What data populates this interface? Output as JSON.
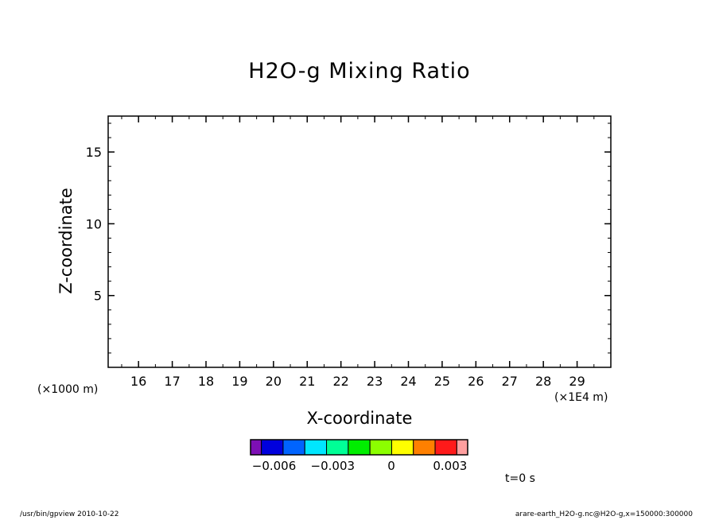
{
  "chart_data": {
    "type": "heatmap",
    "title": "H2O-g Mixing Ratio",
    "xlabel": "X-coordinate",
    "ylabel": "Z-coordinate",
    "x_unit_note": "(×1E4 m)",
    "y_unit_note": "(×1000 m)",
    "xlim": [
      15.1,
      30.0
    ],
    "ylim": [
      0,
      17.5
    ],
    "x_ticks": [
      16,
      17,
      18,
      19,
      20,
      21,
      22,
      23,
      24,
      25,
      26,
      27,
      28,
      29
    ],
    "y_ticks": [
      5,
      10,
      15
    ],
    "values": [],
    "colorbar": {
      "ticks": [
        "−0.006",
        "−0.003",
        "0",
        "0.003"
      ],
      "tick_values": [
        -0.006,
        -0.003,
        0,
        0.003
      ],
      "range": [
        -0.0072,
        0.0039
      ],
      "colors": [
        "#7d0fb5",
        "#0000dd",
        "#0064ff",
        "#00e6ff",
        "#00ff96",
        "#00ee00",
        "#8cff00",
        "#ffff00",
        "#ff8000",
        "#ff1a1a",
        "#ff9f9f"
      ],
      "widths": [
        0.5,
        1,
        1,
        1,
        1,
        1,
        1,
        1,
        1,
        1,
        0.5
      ]
    },
    "grid": false
  },
  "annotations": {
    "time": "t=0 s",
    "footer_left": "/usr/bin/gpview   2010-10-22",
    "footer_right": "arare-earth_H2O-g.nc@H2O-g,x=150000:300000"
  }
}
